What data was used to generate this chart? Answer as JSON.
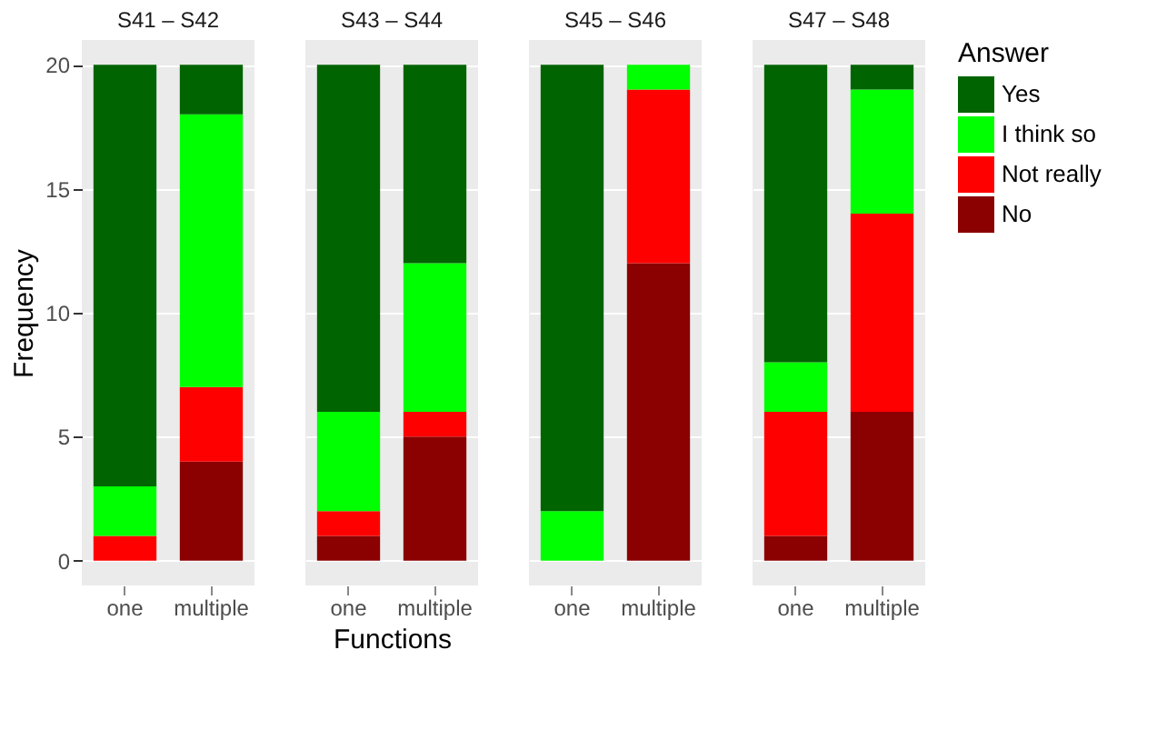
{
  "chart_data": [
    {
      "type": "bar",
      "title": "S41 – S42",
      "stacked": true,
      "ylabel": "Frequency",
      "legend_title": "Answer",
      "legend": "right",
      "grid": true,
      "ylim": [
        -1,
        21
      ],
      "yticks": [
        0,
        5,
        10,
        15,
        20
      ],
      "categories": [
        "one",
        "multiple"
      ],
      "series": [
        {
          "name": "No",
          "color": "#8b0000",
          "values": [
            0,
            4
          ]
        },
        {
          "name": "Not really",
          "color": "#ff0000",
          "values": [
            1,
            3
          ]
        },
        {
          "name": "I think so",
          "color": "#00ff00",
          "values": [
            2,
            11
          ]
        },
        {
          "name": "Yes",
          "color": "#006400",
          "values": [
            17,
            2
          ]
        }
      ]
    },
    {
      "type": "bar",
      "title": "S43 – S44",
      "stacked": true,
      "xlabel": "Functions",
      "grid": true,
      "tick_labels": "x",
      "ylim": [
        -1,
        21
      ],
      "yticks": [
        0,
        5,
        10,
        15,
        20
      ],
      "categories": [
        "one",
        "multiple"
      ],
      "series": [
        {
          "color": "#8b0000",
          "values": [
            1,
            5
          ]
        },
        {
          "color": "#ff0000",
          "values": [
            1,
            1
          ]
        },
        {
          "color": "#00ff00",
          "values": [
            4,
            6
          ]
        },
        {
          "color": "#006400",
          "values": [
            14,
            8
          ]
        }
      ]
    },
    {
      "type": "bar",
      "title": "S45 – S46",
      "stacked": true,
      "grid": true,
      "tick_labels": "x",
      "ylim": [
        -1,
        21
      ],
      "yticks": [
        0,
        5,
        10,
        15,
        20
      ],
      "categories": [
        "one",
        "multiple"
      ],
      "series": [
        {
          "color": "#8b0000",
          "values": [
            0,
            12
          ]
        },
        {
          "color": "#ff0000",
          "values": [
            0,
            7
          ]
        },
        {
          "color": "#00ff00",
          "values": [
            2,
            1
          ]
        },
        {
          "color": "#006400",
          "values": [
            18,
            0
          ]
        }
      ]
    },
    {
      "type": "bar",
      "title": "S47 – S48",
      "stacked": true,
      "grid": true,
      "tick_labels": "x",
      "ylim": [
        -1,
        21
      ],
      "yticks": [
        0,
        5,
        10,
        15,
        20
      ],
      "categories": [
        "one",
        "multiple"
      ],
      "series": [
        {
          "color": "#8b0000",
          "values": [
            1,
            6
          ]
        },
        {
          "color": "#ff0000",
          "values": [
            5,
            8
          ]
        },
        {
          "color": "#00ff00",
          "values": [
            2,
            5
          ]
        },
        {
          "color": "#006400",
          "values": [
            12,
            1
          ]
        }
      ]
    }
  ]
}
